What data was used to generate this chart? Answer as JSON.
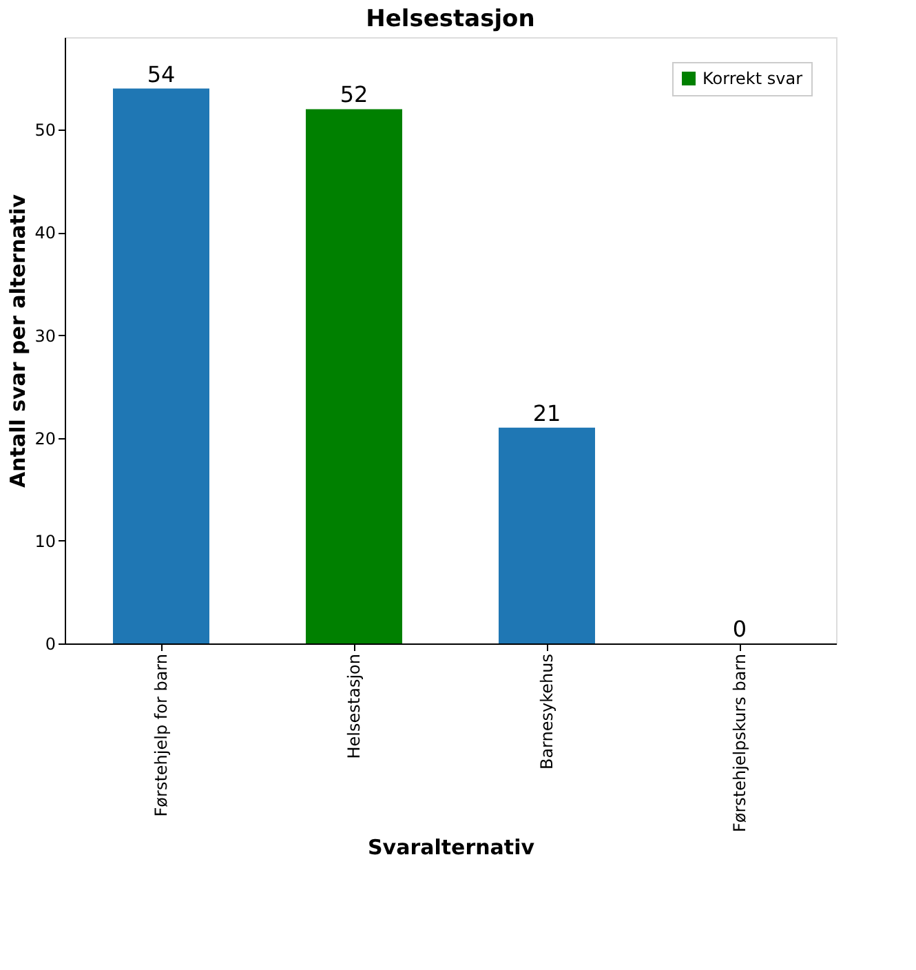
{
  "chart_data": {
    "type": "bar",
    "title": "Helsestasjon",
    "xlabel": "Svaralternativ",
    "ylabel": "Antall svar per alternativ",
    "categories": [
      "Førstehjelp for barn",
      "Helsestasjon",
      "Barnesykehus",
      "Førstehjelpskurs barn"
    ],
    "series": [
      {
        "color": "#1f77b4",
        "values": [
          54,
          null,
          21,
          0
        ]
      },
      {
        "name": "Korrekt svar",
        "color": "#008000",
        "values": [
          null,
          52,
          null,
          null
        ]
      }
    ],
    "ylim": [
      0,
      59
    ],
    "yticks": [
      0,
      10,
      20,
      30,
      40,
      50
    ],
    "data_labels": true,
    "legend": "top right",
    "grid": false
  }
}
